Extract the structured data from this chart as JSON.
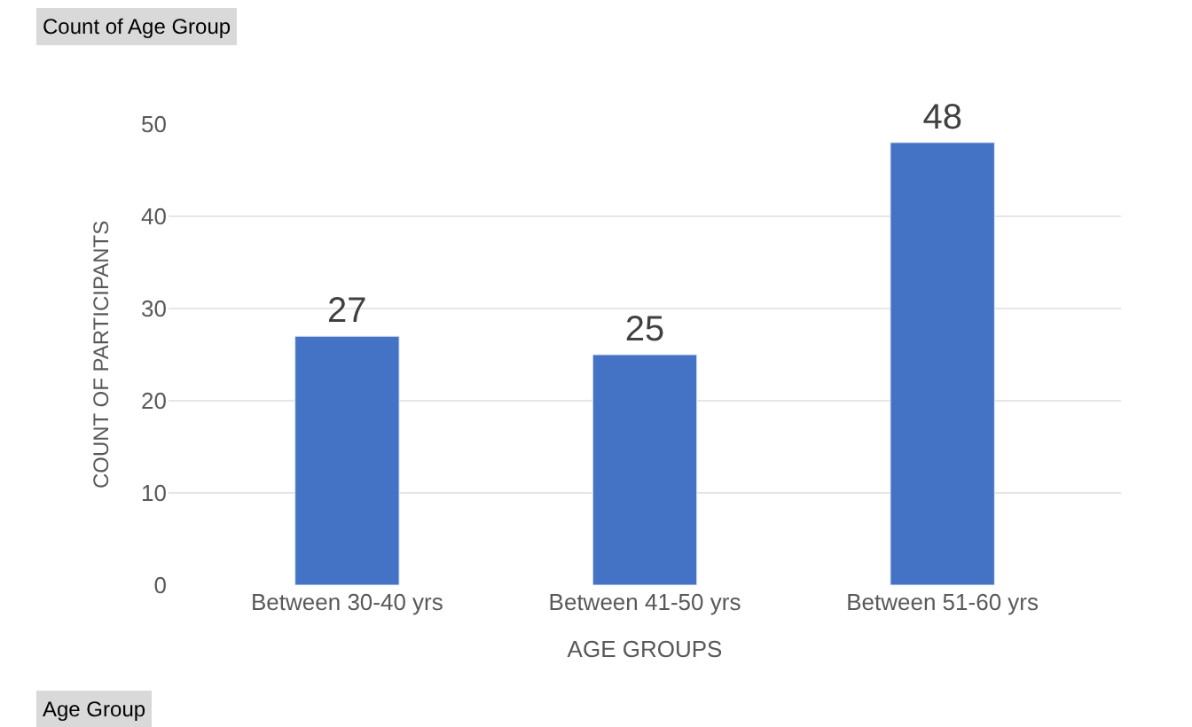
{
  "chart_data": {
    "type": "bar",
    "title": "Count of Age Group",
    "categories": [
      "Between 30-40 yrs",
      "Between 41-50 yrs",
      "Between 51-60 yrs"
    ],
    "values": [
      27,
      25,
      48
    ],
    "color": "#4472c4",
    "xlabel": "AGE GROUPS",
    "ylabel": "COUNT OF PARTICIPANTS",
    "ylim": [
      0,
      50
    ],
    "yticks": [
      0,
      10,
      20,
      30,
      40,
      50
    ],
    "grid": "y",
    "data_labels": true,
    "legend": false,
    "annotations": [
      "Age Group"
    ]
  }
}
